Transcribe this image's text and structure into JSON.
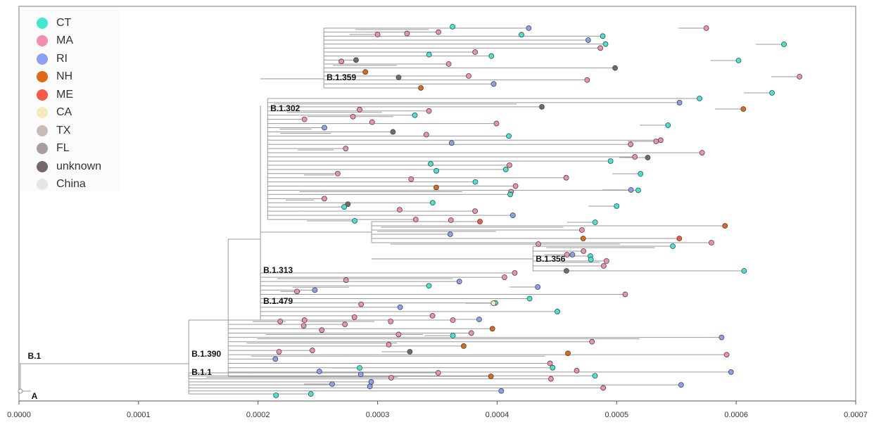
{
  "chart_data": {
    "type": "phylogenetic-tree",
    "xlim": [
      0,
      0.0007
    ],
    "x_ticks": [
      "0.0000",
      "0.0001",
      "0.0002",
      "0.0003",
      "0.0004",
      "0.0005",
      "0.0006",
      "0.0007"
    ],
    "legend": [
      {
        "label": "CT",
        "color": "#40e8d0"
      },
      {
        "label": "MA",
        "color": "#f090b0"
      },
      {
        "label": "RI",
        "color": "#8ca0f0"
      },
      {
        "label": "NH",
        "color": "#e06818"
      },
      {
        "label": "ME",
        "color": "#f85848"
      },
      {
        "label": "CA",
        "color": "#f8e8c0"
      },
      {
        "label": "TX",
        "color": "#c8bcb8"
      },
      {
        "label": "FL",
        "color": "#a89ca0"
      },
      {
        "label": "unknown",
        "color": "#746868"
      },
      {
        "label": "China",
        "color": "#e8e4e4"
      }
    ],
    "clade_labels": [
      {
        "label": "B.1.359",
        "x": 0.000255
      },
      {
        "label": "B.1.302",
        "x": 0.000208
      },
      {
        "label": "B.1.313",
        "x": 0.000202
      },
      {
        "label": "B.1.479",
        "x": 0.000202
      },
      {
        "label": "B.1.356",
        "x": 0.00043
      },
      {
        "label": "B.1.390",
        "x": 0.000142
      },
      {
        "label": "B.1.1",
        "x": 0.000142
      },
      {
        "label": "B.1",
        "x": 5e-06
      },
      {
        "label": "A",
        "x": 8e-06
      }
    ],
    "tips": [
      {
        "x": 0.000575,
        "state": "MA"
      },
      {
        "x": 0.00064,
        "state": "CT"
      },
      {
        "x": 0.000602,
        "state": "CT"
      },
      {
        "x": 0.000653,
        "state": "MA"
      },
      {
        "x": 0.00063,
        "state": "CT"
      },
      {
        "x": 0.000606,
        "state": "NH"
      },
      {
        "x": 0.000543,
        "state": "CT"
      },
      {
        "x": 0.000533,
        "state": "MA"
      },
      {
        "x": 0.000526,
        "state": "unknown"
      },
      {
        "x": 0.00052,
        "state": "CT"
      },
      {
        "x": 0.000512,
        "state": "RI"
      },
      {
        "x": 0.0005,
        "state": "CT"
      },
      {
        "x": 0.000482,
        "state": "CT"
      },
      {
        "x": 0.000472,
        "state": "NH"
      },
      {
        "x": 0.000463,
        "state": "RI"
      },
      {
        "x": 0.000458,
        "state": "unknown"
      },
      {
        "x": 0.000434,
        "state": "RI"
      },
      {
        "x": 0.000397,
        "state": "CA"
      },
      {
        "x": 0.000385,
        "state": "RI"
      },
      {
        "x": 0.000363,
        "state": "CT"
      },
      {
        "x": 0.000327,
        "state": "unknown"
      },
      {
        "x": 0.000285,
        "state": "CT"
      },
      {
        "x": 0.000262,
        "state": "RI"
      },
      {
        "x": 0.0003,
        "state": "MA"
      }
    ]
  }
}
